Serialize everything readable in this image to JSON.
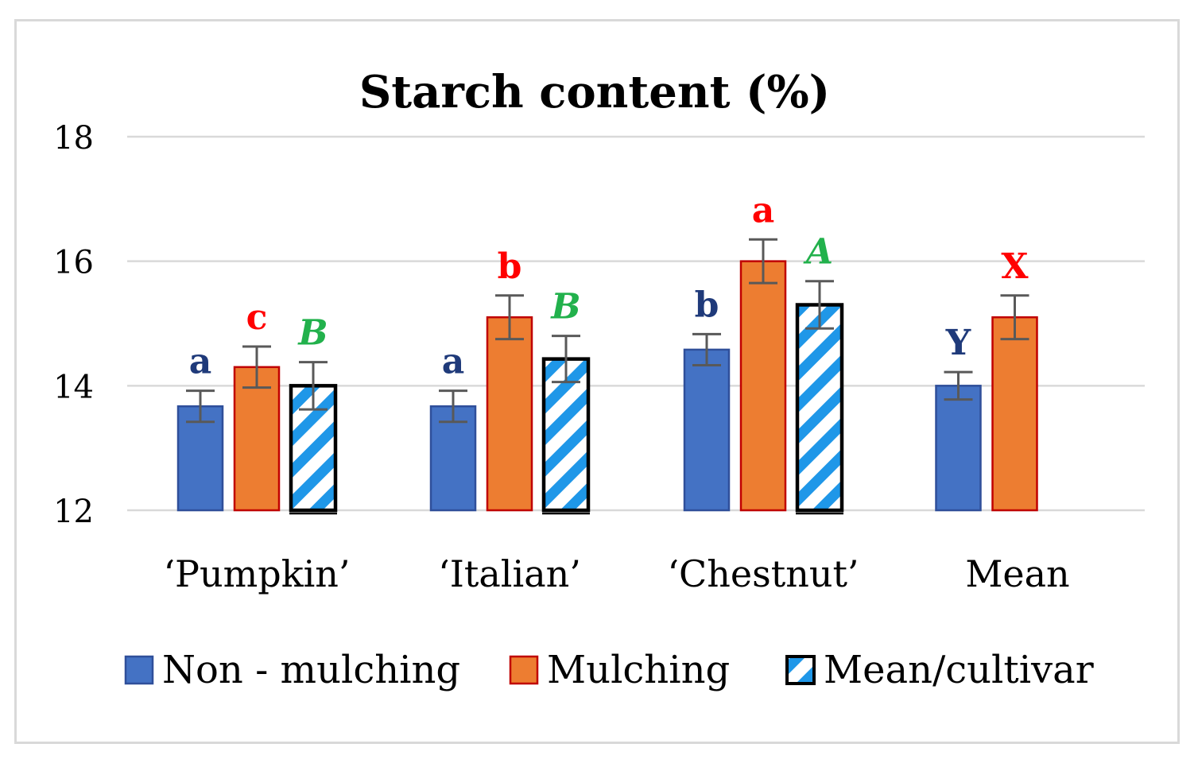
{
  "chart_data": {
    "type": "bar",
    "title": "Starch content (%)",
    "xlabel": "",
    "ylabel": "",
    "ylim": [
      12,
      18
    ],
    "yticks": [
      12,
      14,
      16,
      18
    ],
    "grid": true,
    "legend_position": "bottom",
    "categories": [
      "‘Pumpkin’",
      "‘Italian’",
      "‘Chestnut’",
      "Mean"
    ],
    "series": [
      {
        "name": "Non - mulching",
        "color": "#4472c4",
        "values": [
          13.67,
          13.67,
          14.58,
          14.0
        ],
        "errors": [
          0.25,
          0.25,
          0.25,
          0.22
        ],
        "labels": [
          "a",
          "a",
          "b",
          "Y"
        ],
        "label_color": "#1f3a7a"
      },
      {
        "name": "Mulching",
        "color": "#ed7d31",
        "values": [
          14.3,
          15.1,
          16.0,
          15.1
        ],
        "errors": [
          0.33,
          0.35,
          0.35,
          0.35
        ],
        "labels": [
          "c",
          "b",
          "a",
          "X"
        ],
        "label_color": "#ff0000"
      },
      {
        "name": "Mean/cultivar",
        "color": "#1f97e8",
        "pattern": "diagonal-stripes",
        "values": [
          14.0,
          14.43,
          15.3,
          null
        ],
        "errors": [
          0.38,
          0.37,
          0.38,
          null
        ],
        "labels": [
          "B",
          "B",
          "A",
          null
        ],
        "label_color": "#22b14c"
      }
    ]
  }
}
